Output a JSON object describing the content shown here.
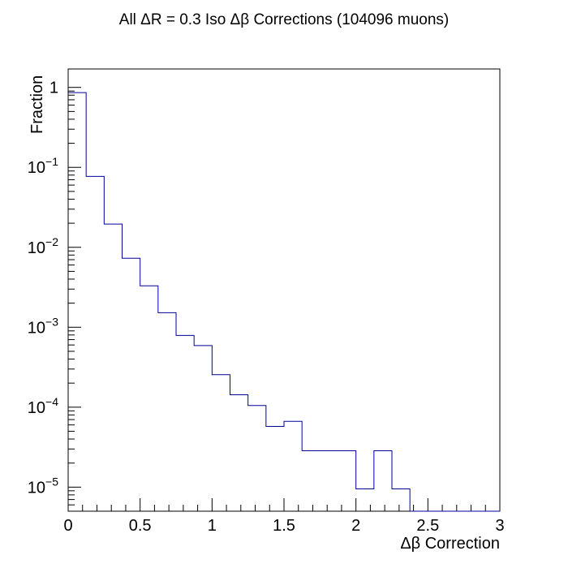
{
  "chart_data": {
    "type": "histogram",
    "title": "All ΔR = 0.3 Iso Δβ Corrections (104096 muons)",
    "xlabel": "Δβ Correction",
    "ylabel": "Fraction",
    "xlim": [
      0,
      3
    ],
    "ylim": [
      5e-06,
      1.7
    ],
    "yscale": "log",
    "grid": false,
    "legend": "none",
    "line_color": "#000099",
    "x_ticks": [
      {
        "value": 0,
        "label": "0"
      },
      {
        "value": 0.5,
        "label": "0.5"
      },
      {
        "value": 1,
        "label": "1"
      },
      {
        "value": 1.5,
        "label": "1.5"
      },
      {
        "value": 2,
        "label": "2"
      },
      {
        "value": 2.5,
        "label": "2.5"
      },
      {
        "value": 3,
        "label": "3"
      }
    ],
    "y_ticks": [
      {
        "value": 1,
        "base": "1",
        "exp": ""
      },
      {
        "value": 0.1,
        "base": "10",
        "exp": "−1"
      },
      {
        "value": 0.01,
        "base": "10",
        "exp": "−2"
      },
      {
        "value": 0.001,
        "base": "10",
        "exp": "−3"
      },
      {
        "value": 0.0001,
        "base": "10",
        "exp": "−4"
      },
      {
        "value": 1e-05,
        "base": "10",
        "exp": "−5"
      }
    ],
    "bin_width": 0.125,
    "bin_edges_start": 0,
    "values": [
      0.86,
      0.077,
      0.0195,
      0.0073,
      0.0033,
      0.00152,
      0.00079,
      0.00059,
      0.000255,
      0.000143,
      0.000105,
      5.75e-05,
      6.65e-05,
      2.85e-05,
      2.85e-05,
      2.85e-05,
      9.5e-06,
      2.85e-05,
      9.5e-06,
      0,
      0,
      0,
      0,
      0
    ]
  }
}
